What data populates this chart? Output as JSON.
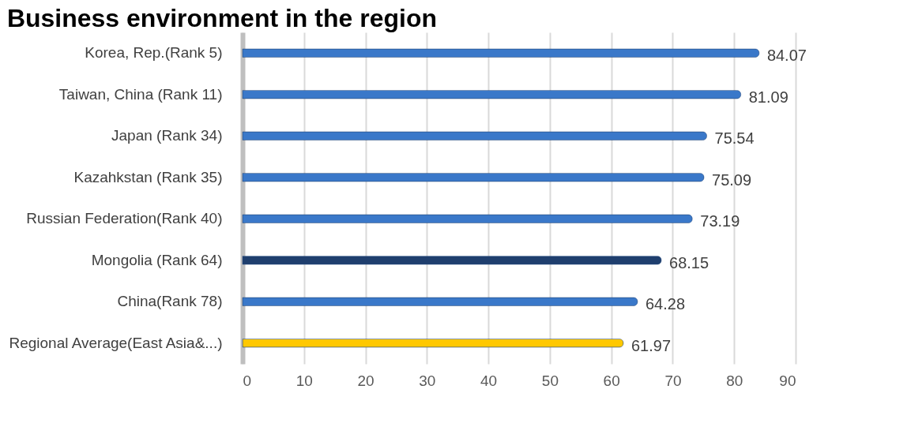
{
  "chart_data": {
    "type": "bar",
    "orientation": "horizontal",
    "title": "Business environment in the region",
    "categories": [
      "Korea, Rep.(Rank 5)",
      "Taiwan, China (Rank 11)",
      "Japan (Rank 34)",
      "Kazahkstan (Rank 35)",
      "Russian Federation(Rank 40)",
      "Mongolia (Rank 64)",
      "China(Rank 78)",
      "Regional Average(East Asia&...)"
    ],
    "values": [
      84.07,
      81.09,
      75.54,
      75.09,
      73.19,
      68.15,
      64.28,
      61.97
    ],
    "colors": [
      "#3a78c9",
      "#3a78c9",
      "#3a78c9",
      "#3a78c9",
      "#3a78c9",
      "#1f3f6e",
      "#3a78c9",
      "#ffc800"
    ],
    "xlim": [
      0,
      90
    ],
    "xticks": [
      0,
      10,
      20,
      30,
      40,
      50,
      60,
      70,
      80,
      90
    ],
    "grid": "x",
    "data_labels": true
  }
}
